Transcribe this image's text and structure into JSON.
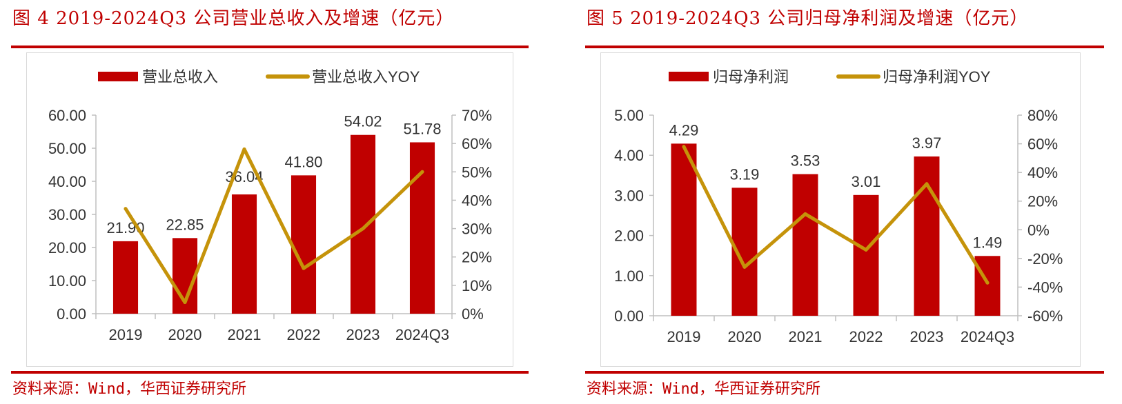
{
  "colors": {
    "accent": "#c00000",
    "bar": "#c00000",
    "line": "#c5930a",
    "axis": "#bfbfbf",
    "text": "#333333"
  },
  "panels": [
    {
      "title": "图 4 2019-2024Q3 公司营业总收入及增速（亿元）",
      "source": "资料来源：Wind，华西证券研究所"
    },
    {
      "title": "图 5 2019-2024Q3 公司归母净利润及增速（亿元）",
      "source": "资料来源：Wind，华西证券研究所"
    }
  ],
  "chart_data": [
    {
      "type": "bar",
      "categories": [
        "2019",
        "2020",
        "2021",
        "2022",
        "2023",
        "2024Q3"
      ],
      "series": [
        {
          "name": "营业总收入",
          "type": "bar",
          "axis": "left",
          "values": [
            21.9,
            22.85,
            36.04,
            41.8,
            54.02,
            51.78
          ],
          "labels": [
            "21.90",
            "22.85",
            "36.04",
            "41.80",
            "54.02",
            "51.78"
          ]
        },
        {
          "name": "营业总收入YOY",
          "type": "line",
          "axis": "right",
          "values": [
            37,
            4,
            58,
            16,
            30,
            50
          ]
        }
      ],
      "y_left": {
        "min": 0,
        "max": 60,
        "ticks": [
          "0.00",
          "10.00",
          "20.00",
          "30.00",
          "40.00",
          "50.00",
          "60.00"
        ]
      },
      "y_right": {
        "min": 0,
        "max": 70,
        "ticks": [
          "0%",
          "10%",
          "20%",
          "30%",
          "40%",
          "50%",
          "60%",
          "70%"
        ]
      },
      "legend": "top-center",
      "grid": false
    },
    {
      "type": "bar",
      "categories": [
        "2019",
        "2020",
        "2021",
        "2022",
        "2023",
        "2024Q3"
      ],
      "series": [
        {
          "name": "归母净利润",
          "type": "bar",
          "axis": "left",
          "values": [
            4.29,
            3.19,
            3.53,
            3.01,
            3.97,
            1.49
          ],
          "labels": [
            "4.29",
            "3.19",
            "3.53",
            "3.01",
            "3.97",
            "1.49"
          ]
        },
        {
          "name": "归母净利润YOY",
          "type": "line",
          "axis": "right",
          "values": [
            58,
            -26,
            11,
            -14,
            32,
            -37
          ]
        }
      ],
      "y_left": {
        "min": 0,
        "max": 5,
        "ticks": [
          "0.00",
          "1.00",
          "2.00",
          "3.00",
          "4.00",
          "5.00"
        ]
      },
      "y_right": {
        "min": -60,
        "max": 80,
        "ticks": [
          "-60%",
          "-40%",
          "-20%",
          "0%",
          "20%",
          "40%",
          "60%",
          "80%"
        ]
      },
      "legend": "top-center",
      "grid": false
    }
  ]
}
